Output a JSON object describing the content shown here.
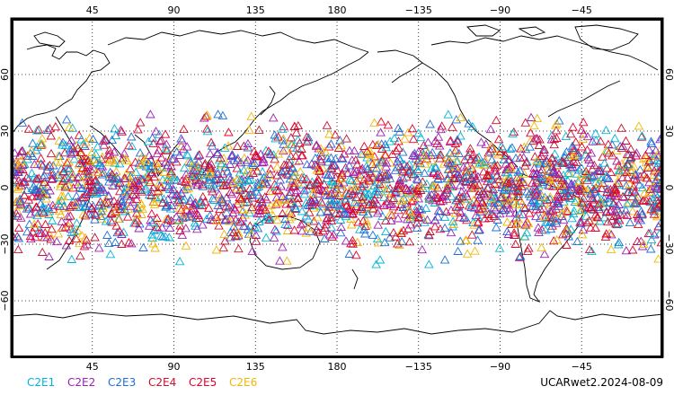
{
  "map": {
    "projection": "equirectangular",
    "center_longitude": 180,
    "lon_range": [
      0,
      360
    ],
    "lat_range": [
      -90,
      90
    ],
    "lon_ticks": [
      {
        "label": "45"
      },
      {
        "label": "90"
      },
      {
        "label": "135"
      },
      {
        "label": "180"
      },
      {
        "label": "−135"
      },
      {
        "label": "−90"
      },
      {
        "label": "−45"
      }
    ],
    "lat_ticks_left": [
      {
        "label": "60"
      },
      {
        "label": "30"
      },
      {
        "label": "0"
      },
      {
        "label": "−30"
      },
      {
        "label": "−60"
      }
    ],
    "lat_ticks_right": [
      {
        "label": "60"
      },
      {
        "label": "30"
      },
      {
        "label": "0"
      },
      {
        "label": "−30"
      },
      {
        "label": "−60"
      }
    ],
    "grid": "dotted",
    "coastline_color": "#000000"
  },
  "chart_data": {
    "type": "scatter",
    "marker": "triangle-open",
    "lat_band_deg": [
      -45,
      45
    ],
    "series": [
      {
        "name": "C2E1",
        "color": "#00b4d8"
      },
      {
        "name": "C2E2",
        "color": "#9b1fb5"
      },
      {
        "name": "C2E3",
        "color": "#1e6fd9"
      },
      {
        "name": "C2E4",
        "color": "#c8102e"
      },
      {
        "name": "C2E5",
        "color": "#e4002b"
      },
      {
        "name": "C2E6",
        "color": "#f2b705"
      }
    ]
  },
  "title": "UCARwet2.2024-08-09"
}
